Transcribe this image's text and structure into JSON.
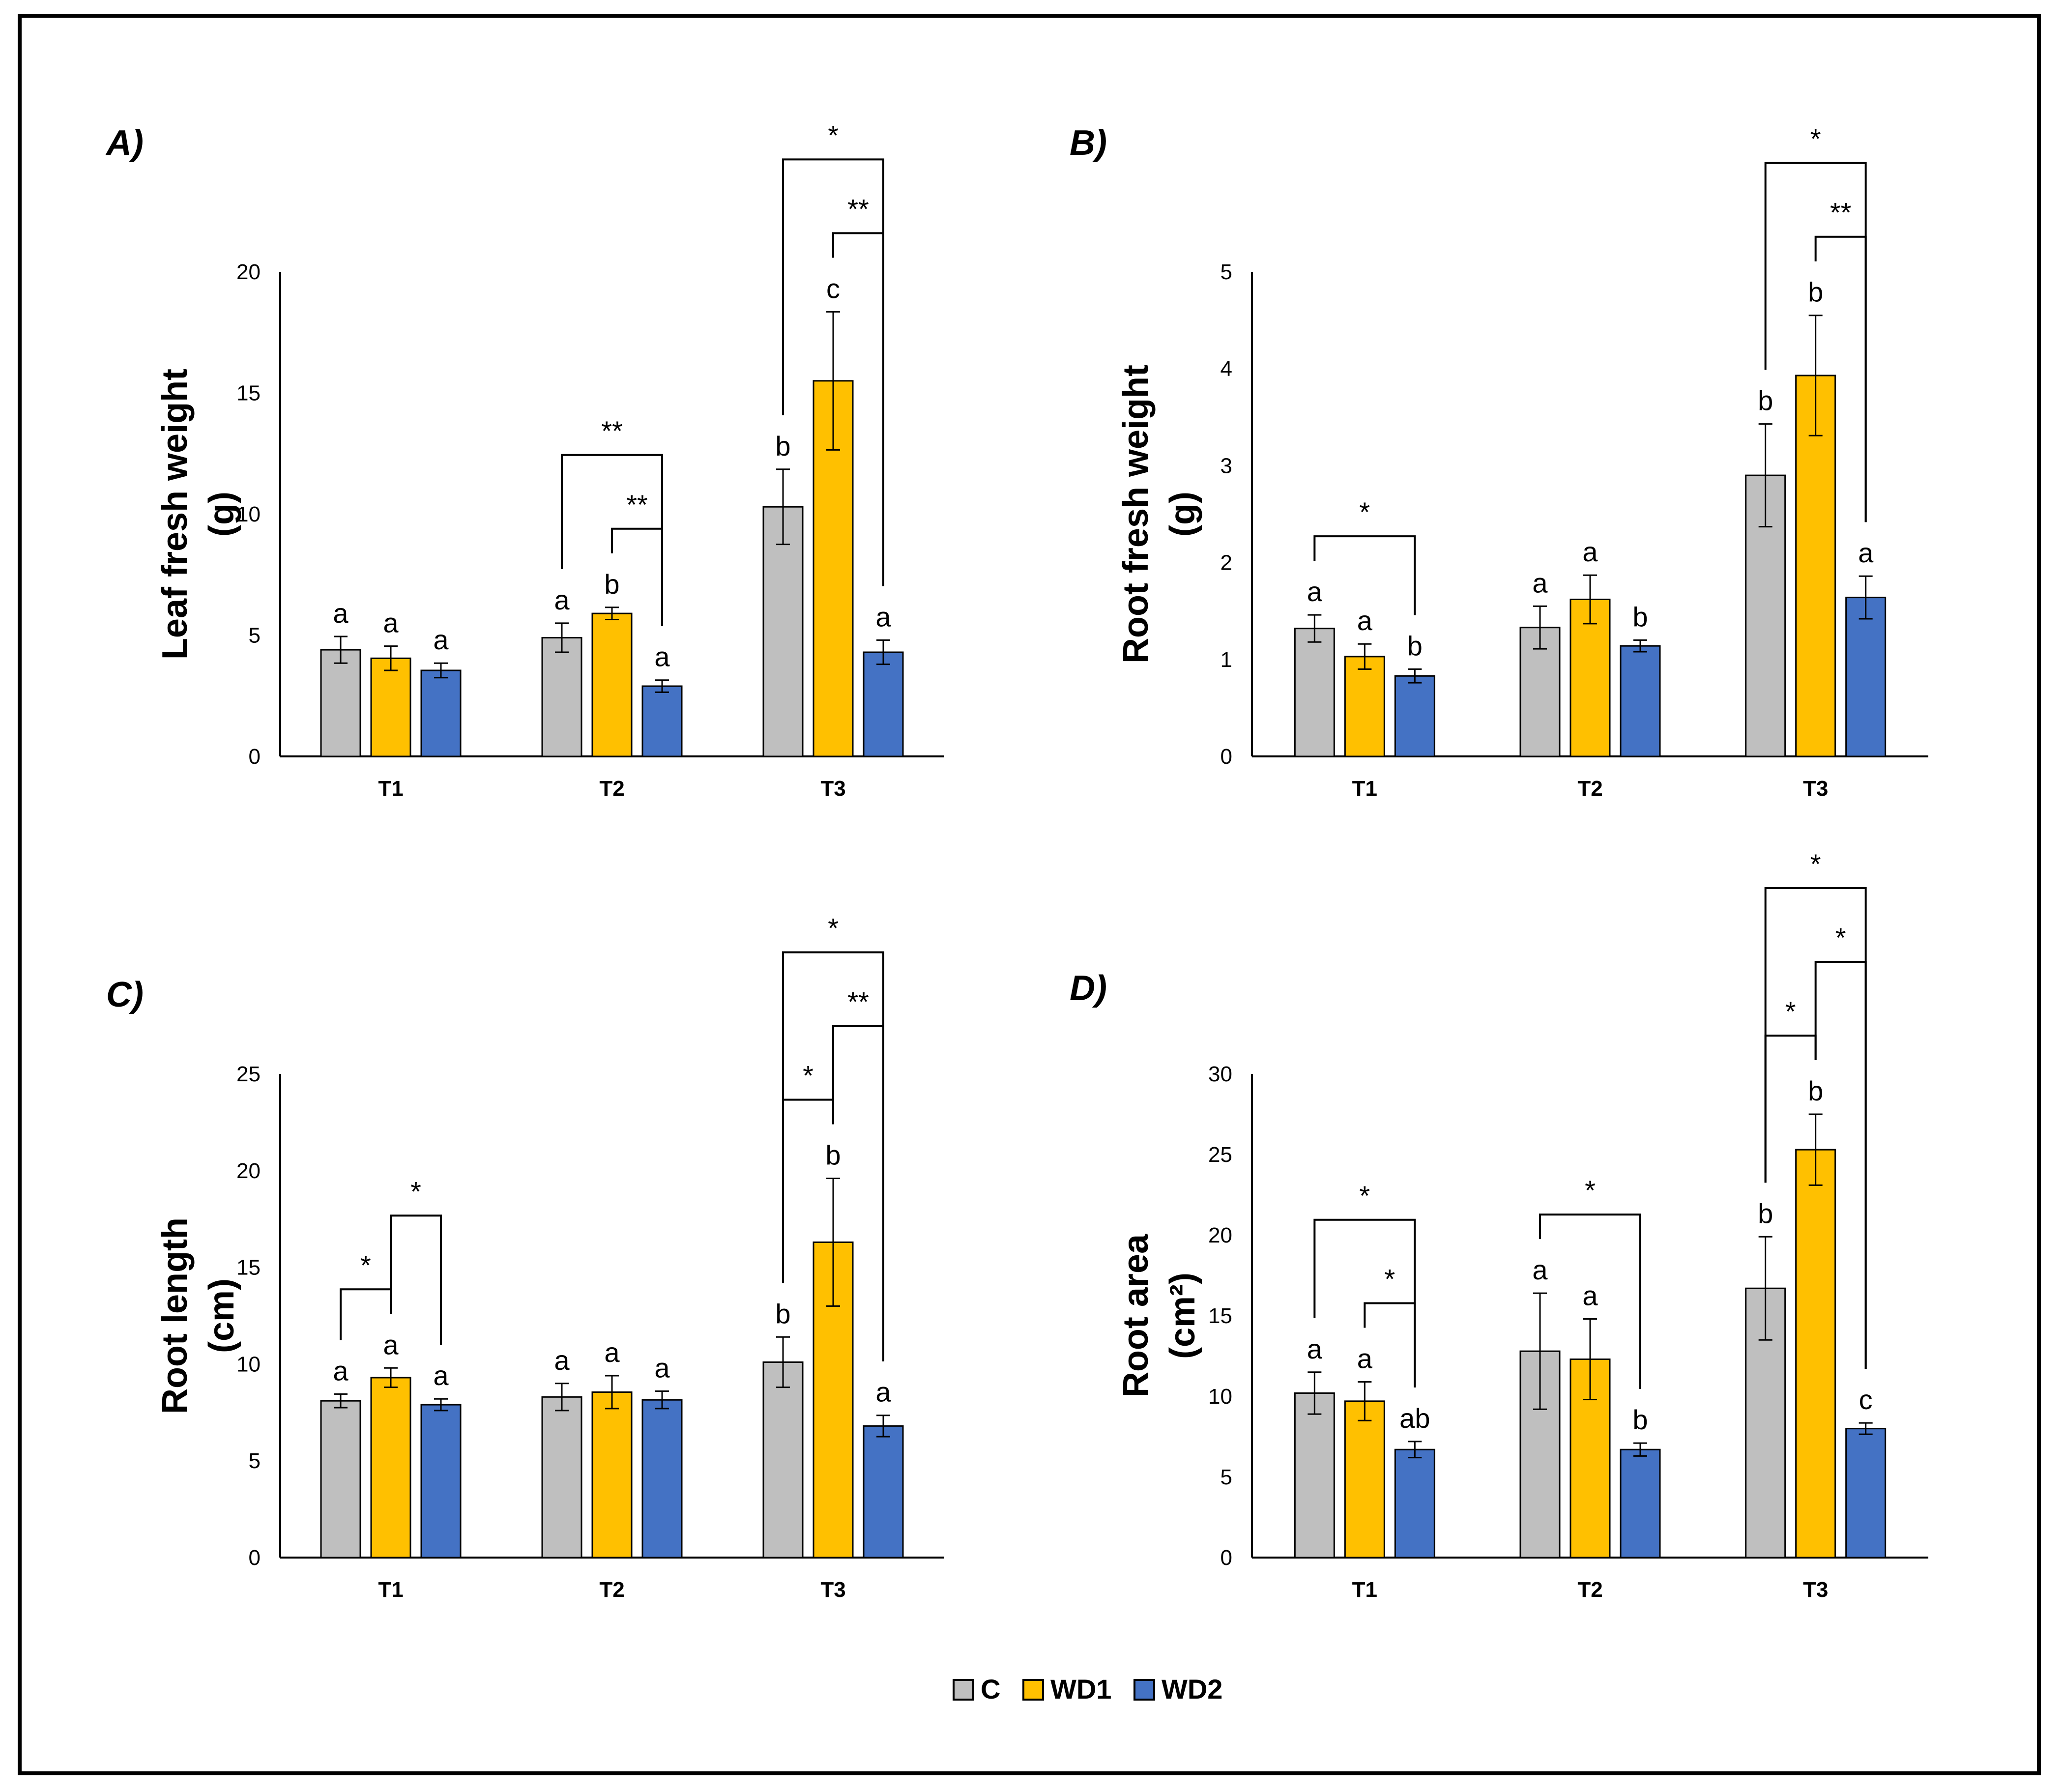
{
  "colors": {
    "C": "#bfbfbf",
    "WD1": "#ffc000",
    "WD2": "#4472c4"
  },
  "legend": [
    {
      "key": "C",
      "label": "C"
    },
    {
      "key": "WD1",
      "label": "WD1"
    },
    {
      "key": "WD2",
      "label": "WD2"
    }
  ],
  "chart_data": [
    {
      "type": "bar",
      "panel": "A)",
      "ylabel": [
        "Leaf fresh weight",
        "(g)"
      ],
      "ylim": [
        0,
        20
      ],
      "yticks": [
        0,
        5,
        10,
        15,
        20
      ],
      "categories": [
        "T1",
        "T2",
        "T3"
      ],
      "series": [
        {
          "name": "C",
          "values": [
            4.4,
            4.9,
            10.3
          ],
          "errors": [
            0.55,
            0.6,
            1.55
          ],
          "letters": [
            "a",
            "a",
            "b"
          ]
        },
        {
          "name": "WD1",
          "values": [
            4.05,
            5.9,
            15.5
          ],
          "errors": [
            0.5,
            0.25,
            2.85
          ],
          "letters": [
            "a",
            "b",
            "c"
          ]
        },
        {
          "name": "WD2",
          "values": [
            3.55,
            2.9,
            4.3
          ],
          "errors": [
            0.3,
            0.25,
            0.5
          ],
          "letters": [
            "a",
            "a",
            "a"
          ]
        }
      ],
      "significance": [
        {
          "group": 1,
          "from": 0,
          "to": 2,
          "label": "**"
        },
        {
          "group": 1,
          "from": 1,
          "to": 2,
          "label": "**"
        },
        {
          "group": 2,
          "from": 0,
          "to": 2,
          "label": "*"
        },
        {
          "group": 2,
          "from": 1,
          "to": 2,
          "label": "**"
        }
      ]
    },
    {
      "type": "bar",
      "panel": "B)",
      "ylabel": [
        "Root fresh weight",
        "(g)"
      ],
      "ylim": [
        0,
        5
      ],
      "yticks": [
        0,
        1,
        2,
        3,
        4,
        5
      ],
      "categories": [
        "T1",
        "T2",
        "T3"
      ],
      "series": [
        {
          "name": "C",
          "values": [
            1.32,
            1.33,
            2.9
          ],
          "errors": [
            0.14,
            0.22,
            0.53
          ],
          "letters": [
            "a",
            "a",
            "b"
          ]
        },
        {
          "name": "WD1",
          "values": [
            1.03,
            1.62,
            3.93
          ],
          "errors": [
            0.13,
            0.25,
            0.62
          ],
          "letters": [
            "a",
            "a",
            "b"
          ]
        },
        {
          "name": "WD2",
          "values": [
            0.83,
            1.14,
            1.64
          ],
          "errors": [
            0.07,
            0.06,
            0.22
          ],
          "letters": [
            "b",
            "b",
            "a"
          ]
        }
      ],
      "significance": [
        {
          "group": 0,
          "from": 0,
          "to": 2,
          "label": "*"
        },
        {
          "group": 2,
          "from": 0,
          "to": 2,
          "label": "*"
        },
        {
          "group": 2,
          "from": 1,
          "to": 2,
          "label": "**"
        }
      ]
    },
    {
      "type": "bar",
      "panel": "C)",
      "ylabel": [
        "Root length",
        "(cm)"
      ],
      "ylim": [
        0,
        25
      ],
      "yticks": [
        0,
        5,
        10,
        15,
        20,
        25
      ],
      "categories": [
        "T1",
        "T2",
        "T3"
      ],
      "series": [
        {
          "name": "C",
          "values": [
            8.1,
            8.3,
            10.1
          ],
          "errors": [
            0.35,
            0.7,
            1.3
          ],
          "letters": [
            "a",
            "a",
            "b"
          ]
        },
        {
          "name": "WD1",
          "values": [
            9.3,
            8.55,
            16.3
          ],
          "errors": [
            0.5,
            0.85,
            3.3
          ],
          "letters": [
            "a",
            "a",
            "b"
          ]
        },
        {
          "name": "WD2",
          "values": [
            7.9,
            8.15,
            6.8
          ],
          "errors": [
            0.3,
            0.45,
            0.55
          ],
          "letters": [
            "a",
            "a",
            "a"
          ]
        }
      ],
      "significance": [
        {
          "group": 0,
          "from": 0,
          "to": 1,
          "label": "*"
        },
        {
          "group": 0,
          "from": 1,
          "to": 2,
          "label": "*"
        },
        {
          "group": 2,
          "from": 0,
          "to": 1,
          "label": "*"
        },
        {
          "group": 2,
          "from": 0,
          "to": 2,
          "label": "*"
        },
        {
          "group": 2,
          "from": 1,
          "to": 2,
          "label": "**"
        }
      ]
    },
    {
      "type": "bar",
      "panel": "D)",
      "ylabel": [
        "Root area",
        "(cm²)"
      ],
      "ylim": [
        0,
        30
      ],
      "yticks": [
        0,
        5,
        10,
        15,
        20,
        25,
        30
      ],
      "categories": [
        "T1",
        "T2",
        "T3"
      ],
      "series": [
        {
          "name": "C",
          "values": [
            10.2,
            12.8,
            16.7
          ],
          "errors": [
            1.3,
            3.6,
            3.2
          ],
          "letters": [
            "a",
            "a",
            "b"
          ]
        },
        {
          "name": "WD1",
          "values": [
            9.7,
            12.3,
            25.3
          ],
          "errors": [
            1.2,
            2.5,
            2.2
          ],
          "letters": [
            "a",
            "a",
            "b"
          ]
        },
        {
          "name": "WD2",
          "values": [
            6.7,
            6.7,
            8.0
          ],
          "errors": [
            0.5,
            0.4,
            0.35
          ],
          "letters": [
            "ab",
            "b",
            "c"
          ]
        }
      ],
      "significance": [
        {
          "group": 0,
          "from": 0,
          "to": 2,
          "label": "*"
        },
        {
          "group": 0,
          "from": 1,
          "to": 2,
          "label": "*"
        },
        {
          "group": 1,
          "from": 0,
          "to": 2,
          "label": "*"
        },
        {
          "group": 2,
          "from": 0,
          "to": 1,
          "label": "*"
        },
        {
          "group": 2,
          "from": 0,
          "to": 2,
          "label": "*"
        },
        {
          "group": 2,
          "from": 1,
          "to": 2,
          "label": "*"
        }
      ]
    }
  ]
}
